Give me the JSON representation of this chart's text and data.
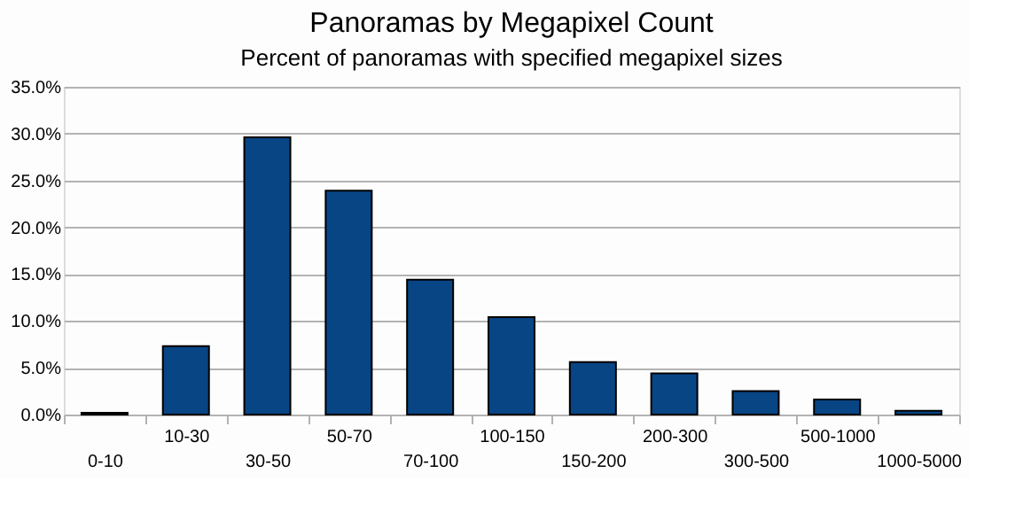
{
  "chart_data": {
    "type": "bar",
    "title": "Panoramas by Megapixel Count",
    "subtitle": "Percent of panoramas with specified megapixel sizes",
    "categories": [
      "0-10",
      "10-30",
      "30-50",
      "50-70",
      "70-100",
      "100-150",
      "150-200",
      "200-300",
      "300-500",
      "500-1000",
      "1000-5000"
    ],
    "values": [
      0.2,
      7.3,
      29.6,
      23.9,
      14.4,
      10.4,
      5.6,
      4.4,
      2.5,
      1.6,
      0.4
    ],
    "color": "#084584",
    "ylim": [
      0,
      35
    ],
    "yticks": [
      {
        "value": 0,
        "label": "0.0%"
      },
      {
        "value": 5,
        "label": "5.0%"
      },
      {
        "value": 10,
        "label": "10.0%"
      },
      {
        "value": 15,
        "label": "15.0%"
      },
      {
        "value": 20,
        "label": "20.0%"
      },
      {
        "value": 25,
        "label": "25.0%"
      },
      {
        "value": 30,
        "label": "30.0%"
      },
      {
        "value": 35,
        "label": "35.0%"
      }
    ],
    "grid": "y"
  }
}
